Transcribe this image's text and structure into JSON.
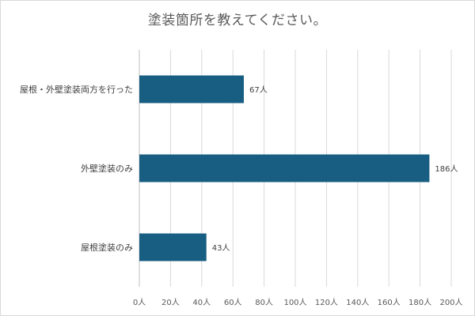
{
  "colors": {
    "bar": "#185e82",
    "grid": "#d9d9d9",
    "axis": "#bfbfbf",
    "text": "#595959"
  },
  "chart_data": {
    "type": "bar",
    "orientation": "horizontal",
    "title": "塗装箇所を教えてください。",
    "categories": [
      "屋根・外壁塗装両方を行った",
      "外壁塗装のみ",
      "屋根塗装のみ"
    ],
    "values": [
      67,
      186,
      43
    ],
    "value_labels": [
      "67人",
      "186人",
      "43人"
    ],
    "xlim": [
      0,
      200
    ],
    "x_ticks": [
      0,
      20,
      40,
      60,
      80,
      100,
      120,
      140,
      160,
      180,
      200
    ],
    "x_tick_labels": [
      "0人",
      "20人",
      "40人",
      "60人",
      "80人",
      "100人",
      "120人",
      "140人",
      "160人",
      "180人",
      "200人"
    ],
    "grid": true,
    "legend": "none"
  }
}
